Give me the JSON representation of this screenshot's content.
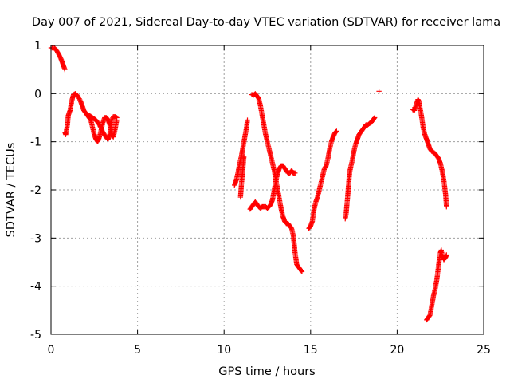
{
  "chart_data": {
    "type": "scatter",
    "title": "Day 007 of 2021, Sidereal Day-to-day VTEC variation (SDTVAR) for receiver lama",
    "xlabel": "GPS time / hours",
    "ylabel": "SDTVAR / TECUs",
    "xlim": [
      0,
      25
    ],
    "ylim": [
      -5,
      1
    ],
    "xticks": [
      0,
      5,
      10,
      15,
      20,
      25
    ],
    "yticks": [
      -5,
      -4,
      -3,
      -2,
      -1,
      0,
      1
    ],
    "grid": true,
    "marker": "plus",
    "color": "#ff0000",
    "segments": [
      [
        [
          0.0,
          0.95
        ],
        [
          0.2,
          0.95
        ],
        [
          0.35,
          0.88
        ],
        [
          0.5,
          0.78
        ],
        [
          0.6,
          0.7
        ],
        [
          0.7,
          0.6
        ],
        [
          0.8,
          0.5
        ]
      ],
      [
        [
          0.8,
          -0.8
        ],
        [
          0.85,
          -0.85
        ],
        [
          0.95,
          -0.65
        ],
        [
          1.0,
          -0.45
        ],
        [
          1.1,
          -0.35
        ],
        [
          1.2,
          -0.15
        ],
        [
          1.3,
          -0.02
        ],
        [
          1.4,
          0.0
        ],
        [
          1.5,
          -0.03
        ],
        [
          1.6,
          -0.08
        ],
        [
          1.7,
          -0.15
        ],
        [
          1.8,
          -0.25
        ],
        [
          1.9,
          -0.35
        ],
        [
          2.0,
          -0.4
        ],
        [
          2.1,
          -0.45
        ],
        [
          2.2,
          -0.5
        ],
        [
          2.3,
          -0.55
        ],
        [
          2.4,
          -0.7
        ],
        [
          2.5,
          -0.85
        ],
        [
          2.6,
          -0.95
        ],
        [
          2.7,
          -1.0
        ],
        [
          2.8,
          -0.9
        ],
        [
          2.9,
          -0.75
        ],
        [
          3.0,
          -0.6
        ],
        [
          3.1,
          -0.5
        ],
        [
          3.2,
          -0.5
        ],
        [
          3.3,
          -0.55
        ],
        [
          3.4,
          -0.65
        ],
        [
          3.5,
          -0.85
        ],
        [
          3.6,
          -0.9
        ],
        [
          3.7,
          -0.75
        ],
        [
          3.8,
          -0.55
        ]
      ],
      [
        [
          2.2,
          -0.45
        ],
        [
          2.4,
          -0.5
        ],
        [
          2.6,
          -0.55
        ],
        [
          2.8,
          -0.65
        ],
        [
          3.0,
          -0.8
        ],
        [
          3.2,
          -0.92
        ],
        [
          3.3,
          -0.95
        ],
        [
          3.4,
          -0.85
        ],
        [
          3.5,
          -0.55
        ],
        [
          3.6,
          -0.48
        ],
        [
          3.7,
          -0.48
        ],
        [
          3.8,
          -0.5
        ]
      ],
      [
        [
          10.6,
          -1.9
        ],
        [
          10.7,
          -1.8
        ],
        [
          10.8,
          -1.65
        ],
        [
          10.9,
          -1.45
        ],
        [
          11.0,
          -1.3
        ],
        [
          11.1,
          -1.1
        ],
        [
          11.2,
          -0.9
        ],
        [
          11.3,
          -0.7
        ],
        [
          11.35,
          -0.55
        ]
      ],
      [
        [
          10.95,
          -2.15
        ],
        [
          11.0,
          -1.9
        ],
        [
          11.05,
          -1.7
        ],
        [
          11.1,
          -1.5
        ],
        [
          11.15,
          -1.3
        ]
      ],
      [
        [
          11.5,
          -2.4
        ],
        [
          11.6,
          -2.35
        ],
        [
          11.7,
          -2.3
        ],
        [
          11.8,
          -2.25
        ],
        [
          11.9,
          -2.3
        ],
        [
          12.0,
          -2.35
        ],
        [
          12.1,
          -2.38
        ],
        [
          12.2,
          -2.35
        ],
        [
          12.3,
          -2.35
        ],
        [
          12.4,
          -2.35
        ],
        [
          12.5,
          -2.38
        ],
        [
          12.6,
          -2.35
        ],
        [
          12.7,
          -2.3
        ],
        [
          12.8,
          -2.2
        ],
        [
          12.9,
          -2.0
        ],
        [
          13.0,
          -1.8
        ],
        [
          13.1,
          -1.65
        ],
        [
          13.2,
          -1.55
        ],
        [
          13.3,
          -1.5
        ],
        [
          13.4,
          -1.5
        ],
        [
          13.5,
          -1.55
        ],
        [
          13.6,
          -1.6
        ],
        [
          13.7,
          -1.65
        ],
        [
          13.8,
          -1.65
        ],
        [
          13.9,
          -1.6
        ],
        [
          14.0,
          -1.65
        ],
        [
          14.1,
          -1.65
        ]
      ],
      [
        [
          11.6,
          -0.02
        ],
        [
          11.7,
          -0.03
        ],
        [
          11.8,
          0.0
        ],
        [
          11.9,
          -0.05
        ],
        [
          12.0,
          -0.1
        ],
        [
          12.1,
          -0.25
        ],
        [
          12.2,
          -0.45
        ],
        [
          12.3,
          -0.65
        ],
        [
          12.4,
          -0.85
        ],
        [
          12.5,
          -1.0
        ],
        [
          12.6,
          -1.15
        ],
        [
          12.7,
          -1.3
        ],
        [
          12.8,
          -1.45
        ],
        [
          12.9,
          -1.6
        ],
        [
          13.0,
          -1.8
        ],
        [
          13.1,
          -2.0
        ],
        [
          13.2,
          -2.2
        ],
        [
          13.3,
          -2.4
        ],
        [
          13.4,
          -2.55
        ],
        [
          13.5,
          -2.65
        ],
        [
          13.6,
          -2.7
        ],
        [
          13.7,
          -2.7
        ],
        [
          13.8,
          -2.75
        ],
        [
          13.9,
          -2.8
        ],
        [
          14.0,
          -2.95
        ],
        [
          14.1,
          -3.3
        ],
        [
          14.2,
          -3.55
        ],
        [
          14.3,
          -3.6
        ],
        [
          14.4,
          -3.65
        ],
        [
          14.5,
          -3.7
        ]
      ],
      [
        [
          14.9,
          -2.8
        ],
        [
          15.0,
          -2.75
        ],
        [
          15.1,
          -2.65
        ],
        [
          15.2,
          -2.4
        ],
        [
          15.3,
          -2.25
        ],
        [
          15.4,
          -2.15
        ],
        [
          15.5,
          -2.0
        ],
        [
          15.6,
          -1.85
        ],
        [
          15.7,
          -1.7
        ],
        [
          15.8,
          -1.55
        ],
        [
          15.9,
          -1.5
        ],
        [
          16.0,
          -1.35
        ],
        [
          16.1,
          -1.15
        ],
        [
          16.2,
          -1.0
        ],
        [
          16.3,
          -0.9
        ],
        [
          16.4,
          -0.82
        ],
        [
          16.5,
          -0.78
        ]
      ],
      [
        [
          17.0,
          -2.6
        ],
        [
          17.05,
          -2.5
        ],
        [
          17.1,
          -2.3
        ],
        [
          17.15,
          -2.1
        ],
        [
          17.2,
          -1.85
        ],
        [
          17.25,
          -1.65
        ],
        [
          17.3,
          -1.55
        ],
        [
          17.4,
          -1.4
        ],
        [
          17.5,
          -1.2
        ],
        [
          17.6,
          -1.05
        ],
        [
          17.7,
          -0.95
        ],
        [
          17.8,
          -0.85
        ],
        [
          17.9,
          -0.8
        ],
        [
          18.0,
          -0.75
        ],
        [
          18.1,
          -0.7
        ],
        [
          18.2,
          -0.65
        ],
        [
          18.3,
          -0.65
        ],
        [
          18.4,
          -0.62
        ],
        [
          18.5,
          -0.6
        ],
        [
          18.6,
          -0.55
        ],
        [
          18.7,
          -0.5
        ]
      ],
      [
        [
          18.95,
          0.05
        ]
      ],
      [
        [
          20.9,
          -0.33
        ],
        [
          21.0,
          -0.35
        ],
        [
          21.2,
          -0.12
        ],
        [
          21.25,
          -0.15
        ],
        [
          21.3,
          -0.25
        ],
        [
          21.4,
          -0.45
        ],
        [
          21.5,
          -0.7
        ],
        [
          21.6,
          -0.85
        ],
        [
          21.7,
          -0.95
        ],
        [
          21.8,
          -1.05
        ],
        [
          21.9,
          -1.15
        ],
        [
          22.0,
          -1.2
        ],
        [
          22.1,
          -1.22
        ],
        [
          22.2,
          -1.25
        ],
        [
          22.3,
          -1.3
        ],
        [
          22.4,
          -1.35
        ],
        [
          22.5,
          -1.45
        ],
        [
          22.6,
          -1.6
        ],
        [
          22.7,
          -1.8
        ],
        [
          22.8,
          -2.1
        ],
        [
          22.85,
          -2.35
        ]
      ],
      [
        [
          21.7,
          -4.7
        ],
        [
          21.8,
          -4.65
        ],
        [
          21.9,
          -4.6
        ],
        [
          22.0,
          -4.4
        ],
        [
          22.1,
          -4.2
        ],
        [
          22.2,
          -4.05
        ],
        [
          22.3,
          -3.85
        ],
        [
          22.35,
          -3.7
        ],
        [
          22.4,
          -3.55
        ],
        [
          22.45,
          -3.4
        ],
        [
          22.5,
          -3.3
        ],
        [
          22.55,
          -3.25
        ],
        [
          22.6,
          -3.35
        ],
        [
          22.7,
          -3.45
        ],
        [
          22.8,
          -3.4
        ],
        [
          22.85,
          -3.35
        ]
      ]
    ]
  }
}
